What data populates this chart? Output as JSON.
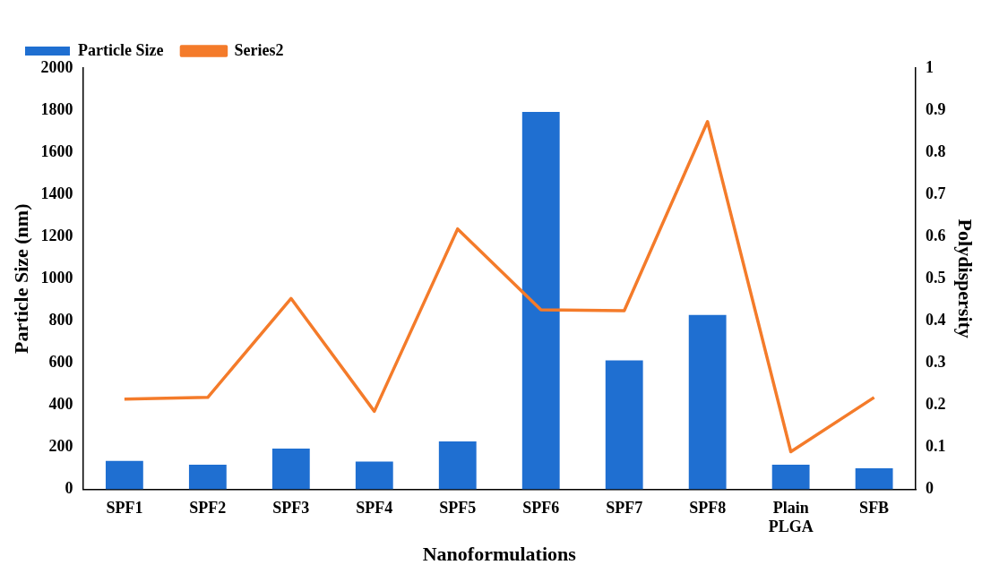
{
  "chart_data": {
    "type": "bar",
    "xlabel": "Nanoformulations",
    "ylabel": "Particle Size (nm)",
    "y2label": "Polydispersity",
    "categories": [
      "SPF1",
      "SPF2",
      "SPF3",
      "SPF4",
      "SPF5",
      "SPF6",
      "SPF7",
      "SPF8",
      "Plain PLGA",
      "SFB"
    ],
    "series": [
      {
        "name": "Particle Size",
        "color": "#1f6fd1",
        "values": [
          135,
          116,
          193,
          131,
          227,
          1792,
          612,
          828,
          116,
          100
        ]
      },
      {
        "name": "Series2",
        "type": "line",
        "color": "#f47b2a",
        "axis": "y2",
        "values": [
          0.214,
          0.218,
          0.453,
          0.185,
          0.618,
          0.426,
          0.424,
          0.873,
          0.089,
          0.218
        ]
      }
    ],
    "ylim": [
      0,
      2000
    ],
    "yticks": [
      0,
      200,
      400,
      600,
      800,
      1000,
      1200,
      1400,
      1600,
      1800,
      2000
    ],
    "y2lim": [
      0,
      1
    ],
    "y2ticks": [
      0,
      0.1,
      0.2,
      0.3,
      0.4,
      0.5,
      0.6,
      0.7,
      0.8,
      0.9,
      1
    ],
    "grid": false,
    "legend": "top left",
    "marker": "none",
    "line_style": "solid"
  }
}
